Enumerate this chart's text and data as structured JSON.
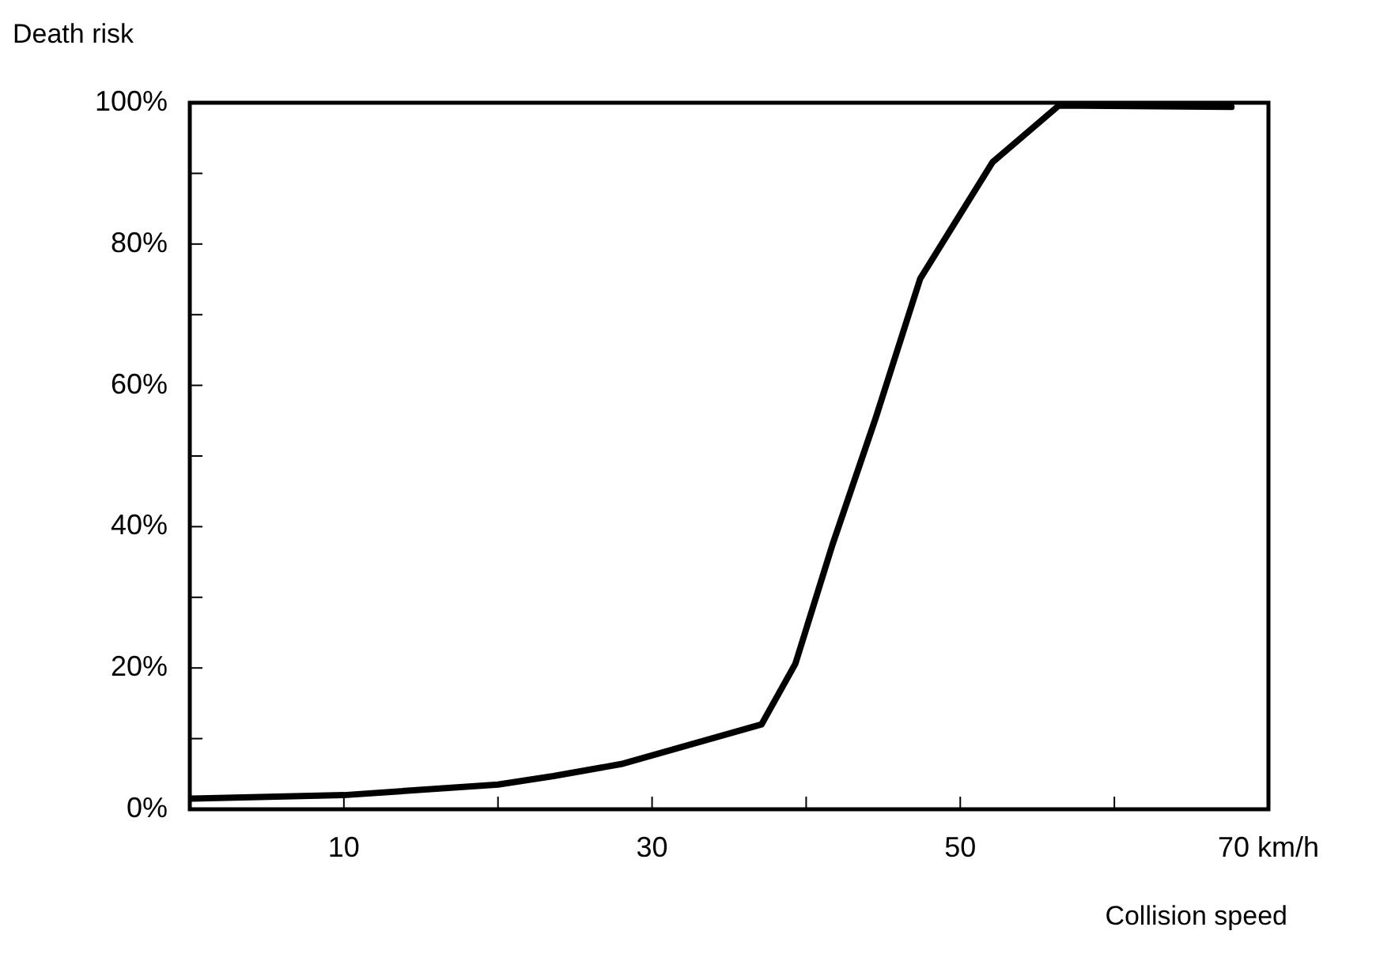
{
  "chart_data": {
    "type": "line",
    "xlabel": "Collision speed",
    "ylabel": "Death risk",
    "series": [
      {
        "color": "#000000",
        "x": [
          0,
          10,
          20,
          23.6,
          28,
          37.1,
          39.3,
          41.7,
          44.5,
          47.4,
          52.1,
          56.4,
          67.6
        ],
        "values": [
          1.5,
          2,
          3.5,
          4.7,
          6.4,
          12,
          20.6,
          37.4,
          55.3,
          75.1,
          91.6,
          99.6,
          99.4
        ]
      }
    ],
    "xlim": [
      0,
      70
    ],
    "xticks": [
      10,
      {
        "value": 20,
        "label": null
      },
      30,
      {
        "value": 40,
        "label": null
      },
      50,
      {
        "value": 60,
        "label": null
      },
      {
        "value": 70,
        "label": "70 km/h"
      }
    ],
    "ylim": [
      0,
      100
    ],
    "yticks": [
      {
        "value": 0,
        "label": "0%"
      },
      {
        "value": 10,
        "label": null
      },
      {
        "value": 20,
        "label": "20%"
      },
      {
        "value": 30,
        "label": null
      },
      {
        "value": 40,
        "label": "40%"
      },
      {
        "value": 50,
        "label": null
      },
      {
        "value": 60,
        "label": "60%"
      },
      {
        "value": 70,
        "label": null
      },
      {
        "value": 80,
        "label": "80%"
      },
      {
        "value": 90,
        "label": null
      },
      {
        "value": 100,
        "label": "100%"
      }
    ],
    "grid": false,
    "legend": false,
    "marker": "none",
    "line_style": "solid"
  }
}
